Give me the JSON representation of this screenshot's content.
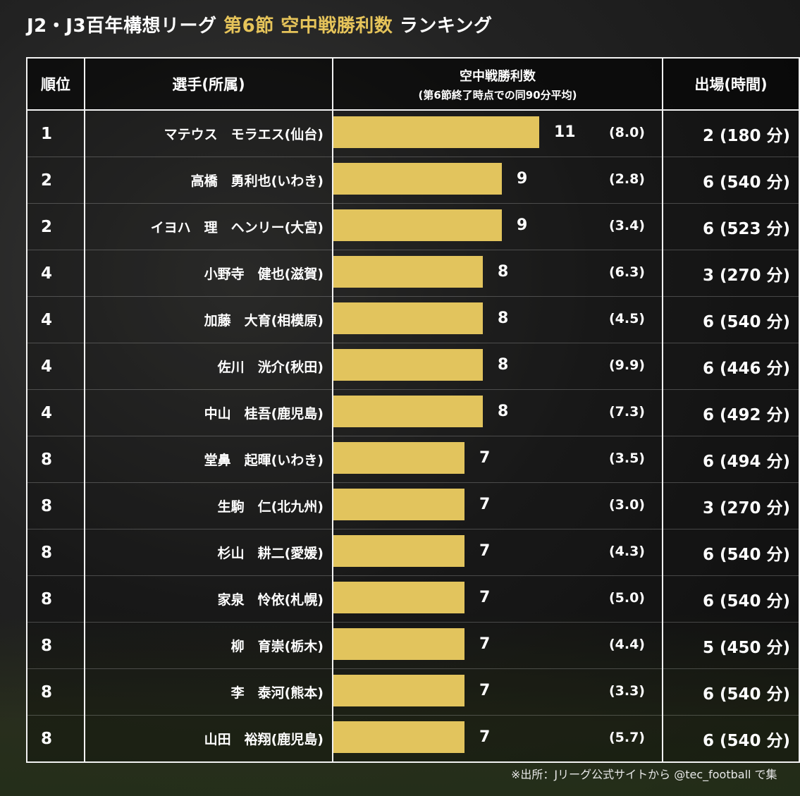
{
  "title": {
    "part1": "J2・J3百年構想リーグ",
    "part2": "第6節 空中戦勝利数",
    "part3": "ランキング"
  },
  "table": {
    "headers": {
      "rank": "順位",
      "player": "選手(所属)",
      "metric_main": "空中戦勝利数",
      "metric_sub": "(第6節終了時点での同90分平均)",
      "appearances": "出場(時間)"
    }
  },
  "source_note": "※出所：Jリーグ公式サイトから @tec_football で集",
  "colors": {
    "bar": "#e2c45d",
    "accent": "#e6c45a"
  },
  "chart_data": {
    "type": "bar",
    "title": "J2・J3百年構想リーグ 第6節 空中戦勝利数 ランキング",
    "xlabel": "空中戦勝利数",
    "categories": [
      "マテウス モラエス(仙台)",
      "高橋 勇利也(いわき)",
      "イヨハ 理 ヘンリー(大宮)",
      "小野寺 健也(滋賀)",
      "加藤 大育(相模原)",
      "佐川 洸介(秋田)",
      "中山 桂吾(鹿児島)",
      "堂鼻 起暉(いわき)",
      "生駒 仁(北九州)",
      "杉山 耕二(愛媛)",
      "家泉 怜依(札幌)",
      "柳 育崇(栃木)",
      "李 泰河(熊本)",
      "山田 裕翔(鹿児島)"
    ],
    "values": [
      11,
      9,
      9,
      8,
      8,
      8,
      8,
      7,
      7,
      7,
      7,
      7,
      7,
      7
    ],
    "rows": [
      {
        "rank": "1",
        "player": "マテウス　モラエス(仙台)",
        "wins": 11,
        "wins_label": "11",
        "per90": "(8.0)",
        "appearances": "2 (180 分)"
      },
      {
        "rank": "2",
        "player": "高橋　勇利也(いわき)",
        "wins": 9,
        "wins_label": "9",
        "per90": "(2.8)",
        "appearances": "6 (540 分)"
      },
      {
        "rank": "2",
        "player": "イヨハ　理　ヘンリー(大宮)",
        "wins": 9,
        "wins_label": "9",
        "per90": "(3.4)",
        "appearances": "6 (523 分)"
      },
      {
        "rank": "4",
        "player": "小野寺　健也(滋賀)",
        "wins": 8,
        "wins_label": "8",
        "per90": "(6.3)",
        "appearances": "3 (270 分)"
      },
      {
        "rank": "4",
        "player": "加藤　大育(相模原)",
        "wins": 8,
        "wins_label": "8",
        "per90": "(4.5)",
        "appearances": "6 (540 分)"
      },
      {
        "rank": "4",
        "player": "佐川　洸介(秋田)",
        "wins": 8,
        "wins_label": "8",
        "per90": "(9.9)",
        "appearances": "6 (446 分)"
      },
      {
        "rank": "4",
        "player": "中山　桂吾(鹿児島)",
        "wins": 8,
        "wins_label": "8",
        "per90": "(7.3)",
        "appearances": "6 (492 分)"
      },
      {
        "rank": "8",
        "player": "堂鼻　起暉(いわき)",
        "wins": 7,
        "wins_label": "7",
        "per90": "(3.5)",
        "appearances": "6 (494 分)"
      },
      {
        "rank": "8",
        "player": "生駒　仁(北九州)",
        "wins": 7,
        "wins_label": "7",
        "per90": "(3.0)",
        "appearances": "3 (270 分)"
      },
      {
        "rank": "8",
        "player": "杉山　耕二(愛媛)",
        "wins": 7,
        "wins_label": "7",
        "per90": "(4.3)",
        "appearances": "6 (540 分)"
      },
      {
        "rank": "8",
        "player": "家泉　怜依(札幌)",
        "wins": 7,
        "wins_label": "7",
        "per90": "(5.0)",
        "appearances": "6 (540 分)"
      },
      {
        "rank": "8",
        "player": "柳　育崇(栃木)",
        "wins": 7,
        "wins_label": "7",
        "per90": "(4.4)",
        "appearances": "5 (450 分)"
      },
      {
        "rank": "8",
        "player": "李　泰河(熊本)",
        "wins": 7,
        "wins_label": "7",
        "per90": "(3.3)",
        "appearances": "6 (540 分)"
      },
      {
        "rank": "8",
        "player": "山田　裕翔(鹿児島)",
        "wins": 7,
        "wins_label": "7",
        "per90": "(5.7)",
        "appearances": "6 (540 分)"
      }
    ],
    "xlim": [
      0,
      12
    ],
    "grid": false,
    "legend": "none"
  }
}
